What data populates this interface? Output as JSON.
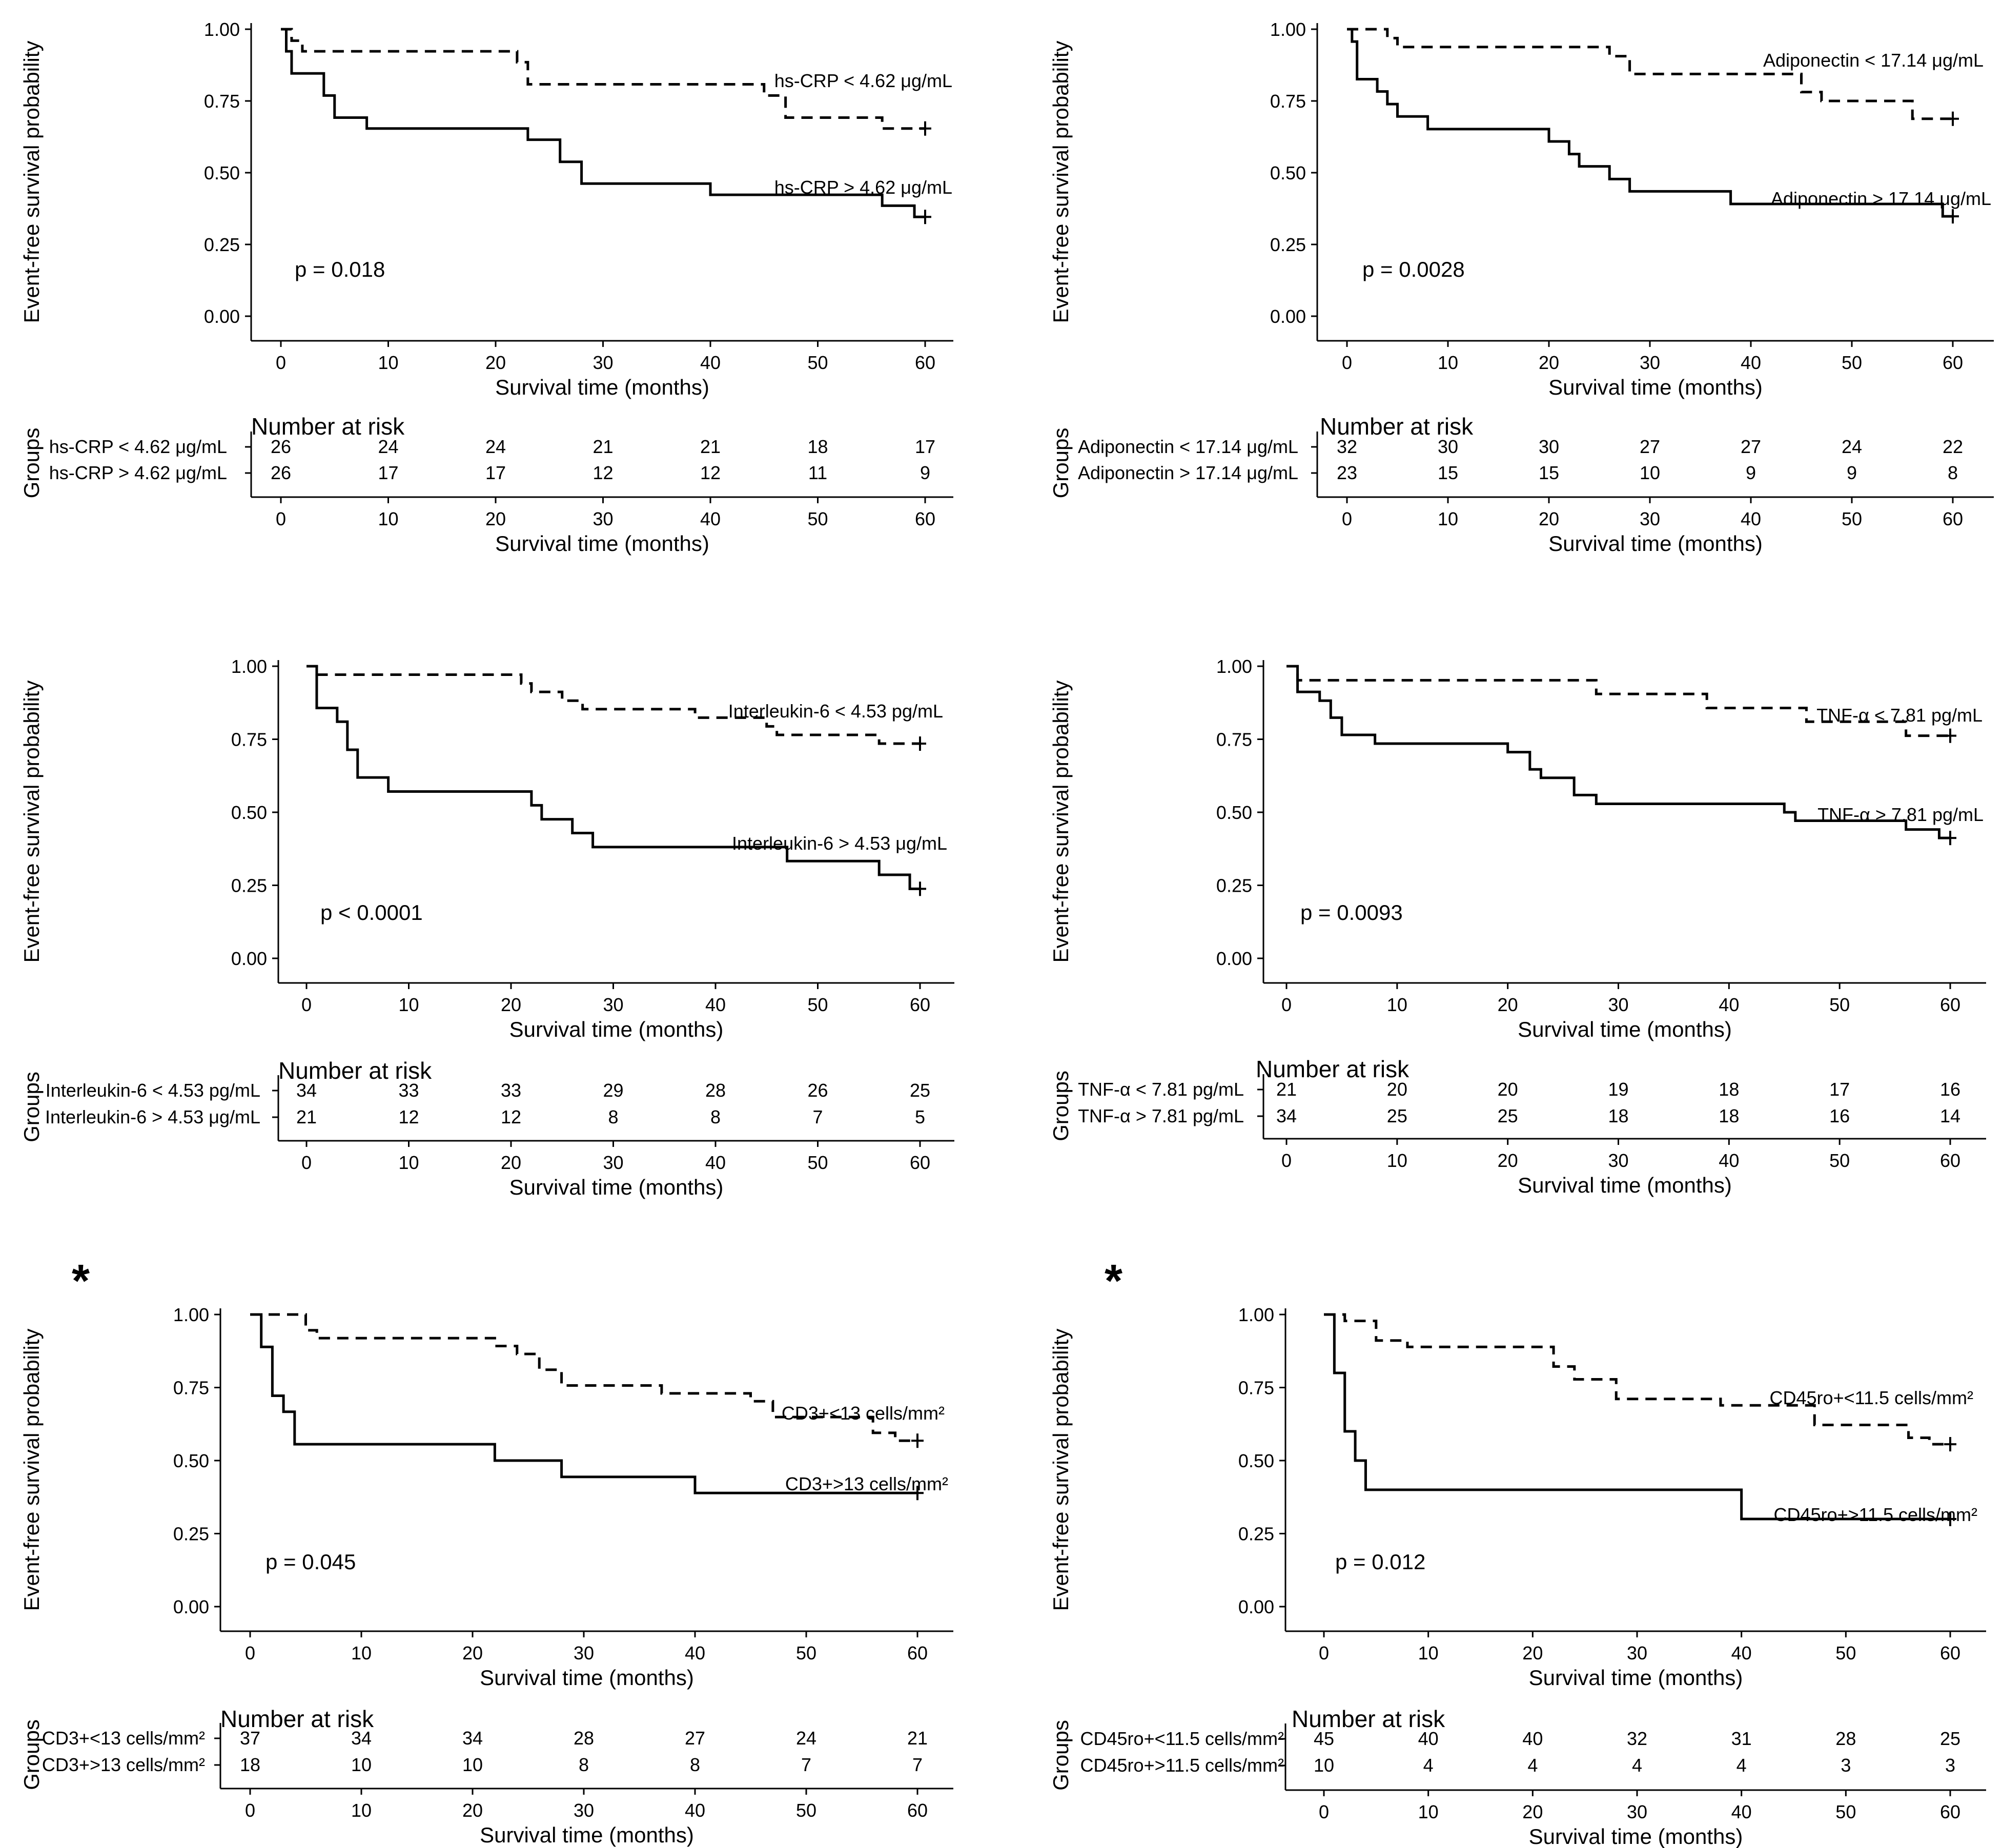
{
  "chart_data": [
    {
      "type": "line",
      "chart_kind": "kaplan-meier",
      "xlabel": "Survival time (months)",
      "ylabel": "Event-free survival probability",
      "xlim": [
        0,
        60
      ],
      "ylim": [
        0,
        1
      ],
      "xticks": [
        "0",
        "10",
        "20",
        "30",
        "40",
        "50",
        "60"
      ],
      "yticks": [
        "0.00",
        "0.25",
        "0.50",
        "0.75",
        "1.00"
      ],
      "pvalue": "p = 0.018",
      "star": "",
      "series": [
        {
          "name": "hs-CRP < 4.62 μg/mL",
          "label": "hs-CRP < 4.62 μg/mL",
          "style": "dashed",
          "x": [
            0,
            1,
            2,
            22,
            23,
            45,
            47,
            56,
            60
          ],
          "y": [
            1.0,
            0.96,
            0.923,
            0.885,
            0.808,
            0.769,
            0.692,
            0.654,
            0.654
          ]
        },
        {
          "name": "hs-CRP > 4.62 μg/mL",
          "label": "hs-CRP > 4.62 μg/mL",
          "style": "solid",
          "x": [
            0,
            0.5,
            1,
            4,
            5,
            8,
            23,
            26,
            28,
            40,
            56,
            59,
            60
          ],
          "y": [
            1.0,
            0.923,
            0.846,
            0.769,
            0.692,
            0.654,
            0.615,
            0.538,
            0.462,
            0.423,
            0.385,
            0.346,
            0.346
          ]
        }
      ],
      "risk_table": {
        "title": "Number at risk",
        "ylabel": "Groups",
        "xlabel": "Survival time (months)",
        "rows": [
          {
            "label": "hs-CRP < 4.62 μg/mL",
            "counts": [
              "26",
              "24",
              "24",
              "21",
              "21",
              "18",
              "17"
            ]
          },
          {
            "label": "hs-CRP > 4.62 μg/mL",
            "counts": [
              "26",
              "17",
              "17",
              "12",
              "12",
              "11",
              "9"
            ]
          }
        ]
      }
    },
    {
      "type": "line",
      "chart_kind": "kaplan-meier",
      "xlabel": "Survival time (months)",
      "ylabel": "Event-free survival probability",
      "xlim": [
        0,
        60
      ],
      "ylim": [
        0,
        1
      ],
      "xticks": [
        "0",
        "10",
        "20",
        "30",
        "40",
        "50",
        "60"
      ],
      "yticks": [
        "0.00",
        "0.25",
        "0.50",
        "0.75",
        "1.00"
      ],
      "pvalue": "p = 0.0028",
      "star": "",
      "series": [
        {
          "name": "Adiponectin < 17.14 μg/mL",
          "label": "Adiponectin < 17.14 μg/mL",
          "style": "dashed",
          "x": [
            0,
            4,
            5,
            26,
            28,
            45,
            47,
            56,
            60
          ],
          "y": [
            1.0,
            0.969,
            0.938,
            0.906,
            0.844,
            0.781,
            0.75,
            0.688,
            0.688
          ]
        },
        {
          "name": "Adiponectin > 17.14 μg/mL",
          "label": "Adiponectin > 17.14 μg/mL",
          "style": "solid",
          "x": [
            0,
            0.5,
            1,
            3,
            4,
            5,
            8,
            20,
            22,
            23,
            26,
            28,
            38,
            59,
            60
          ],
          "y": [
            1.0,
            0.957,
            0.826,
            0.783,
            0.739,
            0.696,
            0.652,
            0.609,
            0.565,
            0.522,
            0.478,
            0.435,
            0.391,
            0.348,
            0.348
          ]
        }
      ],
      "risk_table": {
        "title": "Number at risk",
        "ylabel": "Groups",
        "xlabel": "Survival time (months)",
        "rows": [
          {
            "label": "Adiponectin < 17.14 μg/mL",
            "counts": [
              "32",
              "30",
              "30",
              "27",
              "27",
              "24",
              "22"
            ]
          },
          {
            "label": "Adiponectin > 17.14 μg/mL",
            "counts": [
              "23",
              "15",
              "15",
              "10",
              "9",
              "9",
              "8"
            ]
          }
        ]
      }
    },
    {
      "type": "line",
      "chart_kind": "kaplan-meier",
      "xlabel": "Survival time (months)",
      "ylabel": "Event-free survival probability",
      "xlim": [
        0,
        60
      ],
      "ylim": [
        0,
        1
      ],
      "xticks": [
        "0",
        "10",
        "20",
        "30",
        "40",
        "50",
        "60"
      ],
      "yticks": [
        "0.00",
        "0.25",
        "0.50",
        "0.75",
        "1.00"
      ],
      "pvalue": "p < 0.0001",
      "star": "",
      "series": [
        {
          "name": "Interleukin-6 < 4.53 pg/mL",
          "label": "Interleukin-6 < 4.53 pg/mL",
          "style": "dashed",
          "x": [
            0,
            1,
            21,
            22,
            25,
            27,
            28,
            38,
            45,
            46,
            56,
            60
          ],
          "y": [
            1.0,
            0.971,
            0.941,
            0.912,
            0.882,
            0.853,
            0.853,
            0.824,
            0.794,
            0.765,
            0.735,
            0.735
          ]
        },
        {
          "name": "Interleukin-6 > 4.53 μg/mL",
          "label": "Interleukin-6 > 4.53 μg/mL",
          "style": "solid",
          "x": [
            0,
            1,
            3,
            4,
            5,
            8,
            22,
            23,
            26,
            28,
            47,
            56,
            59,
            60
          ],
          "y": [
            1.0,
            0.857,
            0.81,
            0.714,
            0.619,
            0.571,
            0.524,
            0.476,
            0.429,
            0.381,
            0.333,
            0.286,
            0.238,
            0.238
          ]
        }
      ],
      "risk_table": {
        "title": "Number at risk",
        "ylabel": "Groups",
        "xlabel": "Survival time (months)",
        "rows": [
          {
            "label": "Interleukin-6 < 4.53 pg/mL",
            "counts": [
              "34",
              "33",
              "33",
              "29",
              "28",
              "26",
              "25"
            ]
          },
          {
            "label": "Interleukin-6 > 4.53 μg/mL",
            "counts": [
              "21",
              "12",
              "12",
              "8",
              "8",
              "7",
              "5"
            ]
          }
        ]
      }
    },
    {
      "type": "line",
      "chart_kind": "kaplan-meier",
      "xlabel": "Survival time (months)",
      "ylabel": "Event-free survival probability",
      "xlim": [
        0,
        60
      ],
      "ylim": [
        0,
        1
      ],
      "xticks": [
        "0",
        "10",
        "20",
        "30",
        "40",
        "50",
        "60"
      ],
      "yticks": [
        "0.00",
        "0.25",
        "0.50",
        "0.75",
        "1.00"
      ],
      "pvalue": "p = 0.0093",
      "star": "",
      "series": [
        {
          "name": "TNF-α < 7.81 pg/mL",
          "label": "TNF-α < 7.81 pg/mL",
          "style": "dashed",
          "x": [
            0,
            1,
            28,
            38,
            47,
            56,
            60
          ],
          "y": [
            1.0,
            0.952,
            0.905,
            0.857,
            0.81,
            0.762,
            0.762
          ]
        },
        {
          "name": "TNF-α > 7.81 pg/mL",
          "label": "TNF-α > 7.81 pg/mL",
          "style": "solid",
          "x": [
            0,
            1,
            3,
            4,
            5,
            8,
            20,
            22,
            23,
            26,
            28,
            45,
            46,
            56,
            59,
            60
          ],
          "y": [
            1.0,
            0.912,
            0.882,
            0.824,
            0.765,
            0.735,
            0.706,
            0.647,
            0.618,
            0.559,
            0.529,
            0.5,
            0.471,
            0.441,
            0.412,
            0.412
          ]
        }
      ],
      "risk_table": {
        "title": "Number at risk",
        "ylabel": "Groups",
        "xlabel": "Survival time (months)",
        "rows": [
          {
            "label": "TNF-α < 7.81 pg/mL",
            "counts": [
              "21",
              "20",
              "20",
              "19",
              "18",
              "17",
              "16"
            ]
          },
          {
            "label": "TNF-α > 7.81 pg/mL",
            "counts": [
              "34",
              "25",
              "25",
              "18",
              "18",
              "16",
              "14"
            ]
          }
        ]
      }
    },
    {
      "type": "line",
      "chart_kind": "kaplan-meier",
      "xlabel": "Survival time (months)",
      "ylabel": "Event-free survival probability",
      "xlim": [
        0,
        60
      ],
      "ylim": [
        0,
        1
      ],
      "xticks": [
        "0",
        "10",
        "20",
        "30",
        "40",
        "50",
        "60"
      ],
      "yticks": [
        "0.00",
        "0.25",
        "0.50",
        "0.75",
        "1.00"
      ],
      "pvalue": "p = 0.045",
      "star": "*",
      "series": [
        {
          "name": "CD3+<13 cells/mm²",
          "label": "CD3+<13 cells/mm²",
          "style": "dashed",
          "x": [
            0,
            5,
            6,
            20,
            22,
            24,
            26,
            28,
            37,
            45,
            47,
            56,
            58,
            60
          ],
          "y": [
            1.0,
            0.946,
            0.919,
            0.919,
            0.892,
            0.865,
            0.811,
            0.757,
            0.73,
            0.703,
            0.649,
            0.595,
            0.568,
            0.568
          ]
        },
        {
          "name": "CD3+>13 cells/mm²",
          "label": "CD3+>13 cells/mm²",
          "style": "solid",
          "x": [
            0,
            1,
            2,
            3,
            4,
            22,
            28,
            40,
            60
          ],
          "y": [
            1.0,
            0.889,
            0.722,
            0.667,
            0.556,
            0.5,
            0.444,
            0.389,
            0.389
          ]
        }
      ],
      "risk_table": {
        "title": "Number at risk",
        "ylabel": "Groups",
        "xlabel": "Survival time (months)",
        "rows": [
          {
            "label": "CD3+<13 cells/mm²",
            "counts": [
              "37",
              "34",
              "34",
              "28",
              "27",
              "24",
              "21"
            ]
          },
          {
            "label": "CD3+>13 cells/mm²",
            "counts": [
              "18",
              "10",
              "10",
              "8",
              "8",
              "7",
              "7"
            ]
          }
        ]
      }
    },
    {
      "type": "line",
      "chart_kind": "kaplan-meier",
      "xlabel": "Survival time (months)",
      "ylabel": "Event-free survival probability",
      "xlim": [
        0,
        60
      ],
      "ylim": [
        0,
        1
      ],
      "xticks": [
        "0",
        "10",
        "20",
        "30",
        "40",
        "50",
        "60"
      ],
      "yticks": [
        "0.00",
        "0.25",
        "0.50",
        "0.75",
        "1.00"
      ],
      "pvalue": "p = 0.012",
      "star": "*",
      "series": [
        {
          "name": "CD45ro+<11.5 cells/mm²",
          "label": "CD45ro+<11.5 cells/mm²",
          "style": "dashed",
          "x": [
            0,
            2,
            5,
            8,
            22,
            24,
            28,
            38,
            47,
            56,
            58,
            60
          ],
          "y": [
            1.0,
            0.978,
            0.911,
            0.889,
            0.822,
            0.778,
            0.711,
            0.689,
            0.622,
            0.578,
            0.556,
            0.556
          ]
        },
        {
          "name": "CD45ro+>11.5 cells/mm²",
          "label": "CD45ro+>11.5 cells/mm²",
          "style": "solid",
          "x": [
            0,
            1,
            2,
            3,
            4,
            40,
            60
          ],
          "y": [
            1.0,
            0.8,
            0.6,
            0.5,
            0.4,
            0.3,
            0.3
          ]
        }
      ],
      "risk_table": {
        "title": "Number at risk",
        "ylabel": "Groups",
        "xlabel": "Survival time (months)",
        "rows": [
          {
            "label": "CD45ro+<11.5 cells/mm²",
            "counts": [
              "45",
              "40",
              "40",
              "32",
              "31",
              "28",
              "25"
            ]
          },
          {
            "label": "CD45ro+>11.5 cells/mm²",
            "counts": [
              "10",
              "4",
              "4",
              "4",
              "4",
              "3",
              "3"
            ]
          }
        ]
      }
    }
  ]
}
